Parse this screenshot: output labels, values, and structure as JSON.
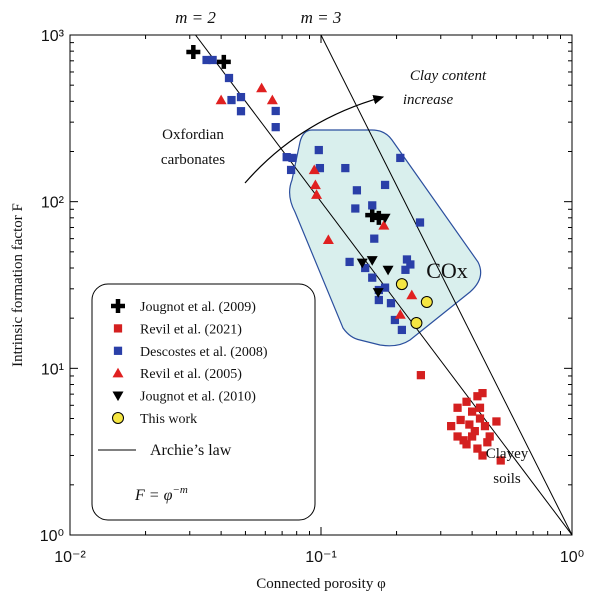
{
  "chart_data": {
    "type": "scatter",
    "x_label": "Connected porosity φ",
    "y_label": "Intrinsic formation factor F",
    "log_x": true,
    "log_y": true,
    "xlim": [
      0.01,
      1
    ],
    "ylim": [
      1,
      1000
    ],
    "xticks": [
      {
        "value": 0.01,
        "label": "10⁻²"
      },
      {
        "value": 0.1,
        "label": "10⁻¹"
      },
      {
        "value": 1,
        "label": "10⁰"
      }
    ],
    "yticks": [
      {
        "value": 1,
        "label": "10⁰"
      },
      {
        "value": 10,
        "label": "10¹"
      },
      {
        "value": 100,
        "label": "10²"
      },
      {
        "value": 1000,
        "label": "10³"
      }
    ],
    "series": [
      {
        "name": "Jougnot et al. (2009)",
        "marker": "plus",
        "color": "#000000",
        "x": [
          0.031,
          0.041,
          0.16,
          0.17
        ],
        "values": [
          790,
          690,
          83,
          80
        ]
      },
      {
        "name": "Revil et al. (2021)",
        "marker": "square",
        "color": "#d42020",
        "x": [
          0.25,
          0.35,
          0.38,
          0.4,
          0.42,
          0.44,
          0.36,
          0.39,
          0.41,
          0.43,
          0.45,
          0.47,
          0.5,
          0.35,
          0.37,
          0.4,
          0.42,
          0.44,
          0.46,
          0.52,
          0.33,
          0.38,
          0.43
        ],
        "values": [
          9.1,
          5.8,
          6.3,
          5.5,
          6.8,
          7.1,
          4.9,
          4.6,
          4.2,
          5.0,
          4.5,
          3.9,
          4.8,
          3.9,
          3.7,
          3.9,
          3.3,
          3.0,
          3.6,
          2.8,
          4.5,
          3.5,
          5.8
        ]
      },
      {
        "name": "Descostes et al. (2008)",
        "marker": "square",
        "color": "#2a3fa8",
        "x": [
          0.035,
          0.037,
          0.043,
          0.044,
          0.048,
          0.048,
          0.066,
          0.066,
          0.073,
          0.077,
          0.076,
          0.098,
          0.099,
          0.125,
          0.139,
          0.137,
          0.163,
          0.16,
          0.18,
          0.207,
          0.248,
          0.22,
          0.227,
          0.217,
          0.13,
          0.15,
          0.16,
          0.17,
          0.18,
          0.17,
          0.19,
          0.21,
          0.197
        ],
        "values": [
          708,
          708,
          552,
          407,
          424,
          349,
          350,
          280,
          185,
          183,
          155,
          204,
          159,
          159,
          117,
          91,
          60,
          95,
          126,
          183,
          75,
          45,
          42,
          39,
          43.5,
          40,
          35,
          29.5,
          30.5,
          25.7,
          24.6,
          17,
          19.5
        ]
      },
      {
        "name": "Revil et al. (2005)",
        "marker": "triangle",
        "color": "#e02020",
        "x": [
          0.04,
          0.058,
          0.064,
          0.094,
          0.095,
          0.096,
          0.107,
          0.178,
          0.207,
          0.23
        ],
        "values": [
          407,
          480,
          407,
          155,
          126,
          110,
          59,
          72,
          21,
          27.5
        ]
      },
      {
        "name": "Jougnot et al. (2010)",
        "marker": "triangle-down",
        "color": "#000000",
        "x": [
          0.146,
          0.16,
          0.185,
          0.18,
          0.169
        ],
        "values": [
          43,
          44.5,
          39,
          80,
          28.6
        ]
      },
      {
        "name": "This work",
        "marker": "circle",
        "color": "#f5e642",
        "x": [
          0.21,
          0.264,
          0.24
        ],
        "values": [
          32,
          25,
          18.7
        ]
      }
    ],
    "archie_lines": [
      {
        "label": "m = 2",
        "m": 2
      },
      {
        "label": "m = 3",
        "m": 3
      }
    ],
    "archie_legend": "Archie’s law",
    "formula": {
      "base": "F = φ",
      "sup": "−m"
    },
    "annotations": {
      "clay": [
        "Clay content",
        "increase"
      ],
      "oxfordian": [
        "Oxfordian",
        "carbonates"
      ],
      "cox": "COx",
      "soils": [
        "Clayey",
        "soils"
      ]
    }
  }
}
